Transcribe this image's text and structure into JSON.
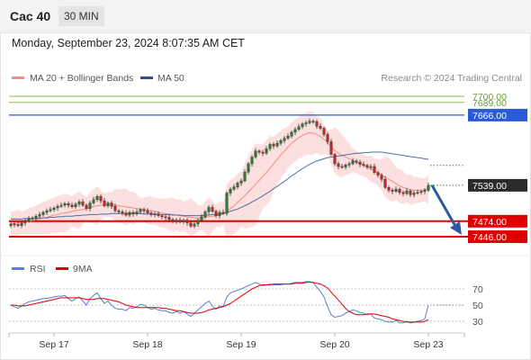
{
  "header": {
    "symbol": "Cac 40",
    "timeframe": "30 MIN",
    "datetime": "Monday, September 23, 2024 8:07:35 AM CET"
  },
  "legend": {
    "bb_label": "MA 20 + Bollinger Bands",
    "ma50_label": "MA 50",
    "credit": "Research © 2024 Trading Central",
    "rsi_label": "RSI",
    "ma9_label": "9MA"
  },
  "colors": {
    "up": "#2e7d32",
    "down": "#c62828",
    "bb_fill": "#fcd9d9",
    "ma20": "#f28b82",
    "ma50": "#4a6fa5",
    "support": "#e00000",
    "resistance_blue": "#2a5bd7",
    "resistance_green": "#8bc34a",
    "rsi": "#5b7fd6",
    "arrow": "#2c5aa0"
  },
  "chart_data": [
    {
      "type": "candlestick",
      "title": "",
      "x_labels": [
        "Sep 17",
        "Sep 18",
        "Sep 19",
        "Sep 20",
        "Sep 23"
      ],
      "ylim": [
        7420,
        7710
      ],
      "levels": [
        {
          "value": 7700.0,
          "label": "7700.00",
          "style": "green"
        },
        {
          "value": 7689.0,
          "label": "7689.00",
          "style": "green"
        },
        {
          "value": 7666.0,
          "label": "7666.00",
          "style": "blue"
        },
        {
          "value": 7539.0,
          "label": "7539.00",
          "style": "current"
        },
        {
          "value": 7474.0,
          "label": "7474.00",
          "style": "red"
        },
        {
          "value": 7446.0,
          "label": "7446.00",
          "style": "red"
        }
      ],
      "closes": [
        7469,
        7468,
        7466,
        7471,
        7474,
        7478,
        7480,
        7483,
        7486,
        7490,
        7493,
        7495,
        7498,
        7501,
        7503,
        7506,
        7503,
        7500,
        7505,
        7509,
        7503,
        7497,
        7507,
        7513,
        7519,
        7511,
        7502,
        7507,
        7501,
        7493,
        7491,
        7489,
        7485,
        7490,
        7487,
        7491,
        7495,
        7493,
        7489,
        7486,
        7487,
        7484,
        7482,
        7481,
        7477,
        7474,
        7476,
        7473,
        7476,
        7471,
        7465,
        7469,
        7476,
        7482,
        7491,
        7499,
        7492,
        7484,
        7490,
        7488,
        7525,
        7532,
        7536,
        7543,
        7547,
        7563,
        7578,
        7590,
        7601,
        7599,
        7597,
        7605,
        7613,
        7610,
        7615,
        7620,
        7624,
        7628,
        7635,
        7640,
        7645,
        7650,
        7652,
        7655,
        7654,
        7646,
        7642,
        7631,
        7618,
        7595,
        7578,
        7573,
        7572,
        7576,
        7578,
        7583,
        7581,
        7577,
        7575,
        7572,
        7573,
        7562,
        7557,
        7550,
        7535,
        7530,
        7528,
        7532,
        7526,
        7524,
        7529,
        7522,
        7525,
        7526,
        7528,
        7530,
        7539
      ],
      "ma20": [
        7470,
        7470,
        7471,
        7471,
        7472,
        7474,
        7475,
        7477,
        7478,
        7480,
        7481,
        7483,
        7485,
        7486,
        7488,
        7489,
        7490,
        7492,
        7493,
        7494,
        7495,
        7497,
        7499,
        7501,
        7502,
        7503,
        7503,
        7504,
        7504,
        7503,
        7502,
        7501,
        7500,
        7499,
        7498,
        7497,
        7496,
        7495,
        7494,
        7493,
        7492,
        7490,
        7489,
        7488,
        7487,
        7486,
        7485,
        7484,
        7483,
        7482,
        7481,
        7480,
        7480,
        7480,
        7481,
        7482,
        7483,
        7484,
        7486,
        7488,
        7492,
        7497,
        7502,
        7508,
        7514,
        7520,
        7527,
        7534,
        7541,
        7548,
        7555,
        7562,
        7570,
        7578,
        7586,
        7594,
        7601,
        7608,
        7615,
        7620,
        7625,
        7629,
        7632,
        7634,
        7633,
        7631,
        7627,
        7622,
        7616,
        7608,
        7602,
        7597,
        7593,
        7590,
        7587,
        7584,
        7581,
        7578,
        7575,
        7572,
        7569,
        7565,
        7562,
        7558,
        7554,
        7550,
        7546,
        7542,
        7538,
        7535,
        7533,
        7531,
        7530,
        7530,
        7530,
        7531,
        7532
      ],
      "ma50": [
        7478,
        7478,
        7478,
        7478,
        7479,
        7479,
        7479,
        7479,
        7480,
        7480,
        7480,
        7481,
        7481,
        7482,
        7482,
        7483,
        7483,
        7483,
        7484,
        7484,
        7485,
        7485,
        7486,
        7486,
        7486,
        7487,
        7487,
        7487,
        7488,
        7488,
        7488,
        7488,
        7488,
        7488,
        7488,
        7488,
        7488,
        7487,
        7487,
        7487,
        7487,
        7487,
        7486,
        7486,
        7486,
        7485,
        7485,
        7485,
        7484,
        7484,
        7484,
        7484,
        7484,
        7484,
        7485,
        7485,
        7486,
        7486,
        7487,
        7488,
        7490,
        7492,
        7494,
        7496,
        7499,
        7502,
        7505,
        7509,
        7512,
        7516,
        7520,
        7524,
        7528,
        7533,
        7537,
        7542,
        7546,
        7551,
        7556,
        7560,
        7565,
        7569,
        7573,
        7577,
        7580,
        7583,
        7585,
        7587,
        7589,
        7590,
        7591,
        7592,
        7593,
        7594,
        7595,
        7596,
        7597,
        7597,
        7598,
        7598,
        7599,
        7599,
        7599,
        7599,
        7598,
        7597,
        7596,
        7595,
        7594,
        7593,
        7592,
        7591,
        7590,
        7589,
        7588,
        7587,
        7586
      ],
      "bb_width": 20,
      "forecast_arrow": {
        "from": 7539,
        "to": 7446
      }
    },
    {
      "type": "line",
      "title": "",
      "ylim": [
        20,
        80
      ],
      "y_ticks": [
        "70",
        "50",
        "30"
      ],
      "rsi": [
        50,
        48,
        46,
        49,
        52,
        54,
        55,
        56,
        57,
        58,
        58,
        59,
        60,
        61,
        61,
        62,
        58,
        55,
        58,
        60,
        55,
        50,
        58,
        62,
        65,
        58,
        52,
        55,
        50,
        46,
        45,
        45,
        43,
        47,
        46,
        48,
        51,
        50,
        47,
        45,
        46,
        44,
        43,
        43,
        41,
        40,
        42,
        40,
        42,
        39,
        36,
        40,
        44,
        48,
        52,
        55,
        49,
        45,
        49,
        48,
        60,
        65,
        67,
        68,
        70,
        72,
        74,
        76,
        78,
        76,
        74,
        75,
        76,
        75,
        75,
        75,
        76,
        76,
        77,
        78,
        78,
        78,
        79,
        79,
        78,
        72,
        67,
        60,
        48,
        38,
        35,
        36,
        37,
        40,
        42,
        44,
        43,
        41,
        40,
        38,
        39,
        34,
        33,
        32,
        30,
        29,
        29,
        31,
        28,
        28,
        30,
        28,
        29,
        30,
        31,
        33,
        50
      ],
      "ma9": [
        50,
        50,
        49,
        49,
        49,
        50,
        51,
        52,
        53,
        54,
        55,
        56,
        57,
        58,
        59,
        59,
        59,
        59,
        59,
        59,
        58,
        57,
        57,
        57,
        58,
        58,
        58,
        57,
        56,
        55,
        54,
        52,
        50,
        49,
        48,
        47,
        47,
        47,
        47,
        47,
        47,
        47,
        46,
        46,
        45,
        44,
        43,
        43,
        42,
        41,
        40,
        40,
        40,
        41,
        42,
        44,
        45,
        46,
        47,
        48,
        50,
        52,
        55,
        58,
        61,
        64,
        67,
        70,
        72,
        74,
        75,
        75,
        75,
        76,
        76,
        76,
        76,
        76,
        76,
        77,
        77,
        77,
        78,
        78,
        78,
        77,
        76,
        74,
        71,
        66,
        61,
        56,
        51,
        46,
        42,
        40,
        38,
        38,
        38,
        39,
        39,
        39,
        38,
        37,
        36,
        35,
        33,
        32,
        31,
        30,
        29,
        29,
        29,
        29,
        29,
        30,
        32
      ]
    }
  ]
}
